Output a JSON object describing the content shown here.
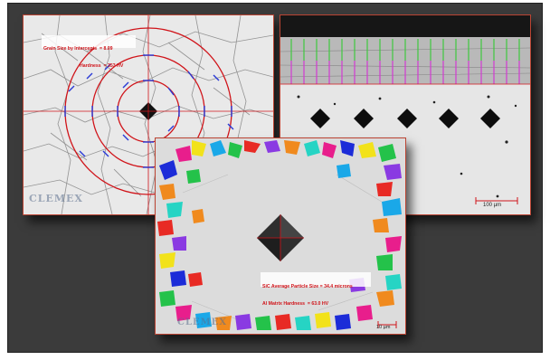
{
  "panels": {
    "grain": {
      "caption_line1": "Grain Size by Intercepts  = 8.09",
      "caption_line2": "Hardness  = 353 HV",
      "watermark": "CLEMEX"
    },
    "coating": {
      "scale_bar_label": "100 µm"
    },
    "sic": {
      "caption_line1": "SiC Average Particle Size = 34.4 microns",
      "caption_line2": "Al Matrix Hardness  = 63.0 HV",
      "watermark": "CLEMEX",
      "scale_bar_label": "10 µm"
    }
  },
  "colors": {
    "background": "#3b3b3b",
    "overlay_red": "#d0141a",
    "overlay_blue": "#2a3ad6"
  }
}
